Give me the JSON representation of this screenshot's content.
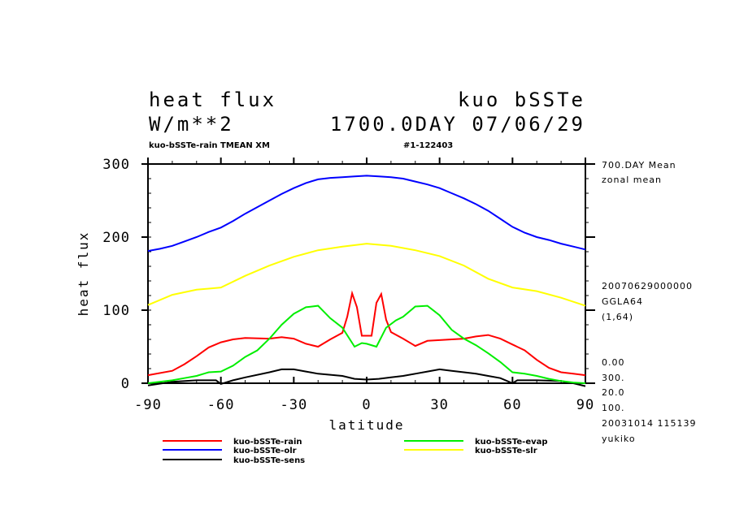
{
  "chart_data": {
    "type": "line",
    "title_left": [
      "heat flux",
      "W/m**2"
    ],
    "title_right": [
      "kuo bSSTe",
      "1700.0DAY 07/06/29"
    ],
    "subtitle_left": "kuo-bSSTe-rain TMEAN XM",
    "subtitle_right": "#1-122403",
    "xlabel": "latitude",
    "ylabel": "heat flux",
    "xlim": [
      -90,
      90
    ],
    "ylim": [
      0,
      300
    ],
    "xticks": [
      -90,
      -60,
      -30,
      0,
      30,
      60,
      90
    ],
    "yticks": [
      0,
      100,
      200,
      300
    ],
    "side_notes": [
      "700.DAY Mean",
      "zonal mean",
      "20070629000000",
      "GGLA64",
      "(1,64)",
      "0.00",
      "300.",
      "20.0",
      "100.",
      "20031014 115139",
      "yukiko"
    ],
    "series": [
      {
        "name": "kuo-bSSTe-rain",
        "color": "#ff0000",
        "x": [
          -90,
          -80,
          -75,
          -70,
          -65,
          -60,
          -55,
          -50,
          -40,
          -35,
          -30,
          -25,
          -20,
          -15,
          -10,
          -8,
          -6,
          -4,
          -2,
          0,
          2,
          4,
          6,
          8,
          10,
          15,
          20,
          25,
          30,
          40,
          45,
          50,
          55,
          60,
          65,
          70,
          75,
          80,
          85,
          90
        ],
        "y": [
          11,
          17,
          26,
          37,
          49,
          56,
          60,
          62,
          61,
          63,
          61,
          54,
          50,
          60,
          69,
          91,
          123,
          104,
          65,
          65,
          65,
          110,
          122,
          87,
          70,
          61,
          51,
          58,
          59,
          61,
          64,
          66,
          61,
          53,
          45,
          32,
          21,
          15,
          13,
          11
        ]
      },
      {
        "name": "kuo-bSSTe-olr",
        "color": "#0000ff",
        "x": [
          -90,
          -85,
          -80,
          -75,
          -70,
          -65,
          -60,
          -55,
          -50,
          -45,
          -40,
          -35,
          -30,
          -25,
          -20,
          -15,
          -10,
          -5,
          0,
          5,
          10,
          15,
          20,
          25,
          30,
          35,
          40,
          45,
          50,
          55,
          60,
          65,
          70,
          75,
          80,
          85,
          90
        ],
        "y": [
          181,
          184,
          188,
          194,
          200,
          207,
          213,
          222,
          232,
          241,
          250,
          259,
          267,
          274,
          279,
          281,
          282,
          283,
          284,
          283,
          282,
          280,
          276,
          272,
          267,
          260,
          253,
          245,
          236,
          225,
          214,
          206,
          200,
          196,
          191,
          187,
          183
        ]
      },
      {
        "name": "kuo-bSSTe-sens",
        "color": "#000000",
        "x": [
          -90,
          -80,
          -70,
          -62,
          -60,
          -55,
          -50,
          -40,
          -35,
          -30,
          -25,
          -20,
          -10,
          -5,
          0,
          5,
          10,
          15,
          20,
          25,
          30,
          35,
          40,
          45,
          50,
          55,
          60,
          62,
          70,
          80,
          85,
          90
        ],
        "y": [
          -3,
          2,
          4,
          4,
          -1,
          4,
          8,
          15,
          19,
          19,
          16,
          13,
          10,
          6,
          5,
          6,
          8,
          10,
          13,
          16,
          19,
          17,
          15,
          13,
          10,
          7,
          0,
          4,
          4,
          3,
          0,
          -4
        ]
      },
      {
        "name": "kuo-bSSTe-evap",
        "color": "#00ee00",
        "x": [
          -90,
          -80,
          -75,
          -70,
          -65,
          -60,
          -55,
          -50,
          -45,
          -40,
          -35,
          -30,
          -25,
          -20,
          -15,
          -10,
          -5,
          -2,
          0,
          4,
          8,
          12,
          15,
          20,
          25,
          30,
          35,
          40,
          45,
          50,
          55,
          60,
          65,
          70,
          75,
          80,
          85,
          90
        ],
        "y": [
          0,
          4,
          7,
          10,
          15,
          16,
          24,
          36,
          45,
          61,
          80,
          95,
          104,
          106,
          89,
          76,
          50,
          55,
          54,
          50,
          76,
          86,
          91,
          105,
          106,
          93,
          73,
          61,
          52,
          41,
          29,
          15,
          13,
          10,
          6,
          3,
          1,
          0
        ]
      },
      {
        "name": "kuo-bSSTe-slr",
        "color": "#ffff00",
        "x": [
          -90,
          -80,
          -70,
          -60,
          -50,
          -40,
          -30,
          -20,
          -10,
          0,
          10,
          20,
          30,
          40,
          50,
          60,
          70,
          80,
          90
        ],
        "y": [
          107,
          121,
          128,
          131,
          147,
          161,
          173,
          182,
          187,
          191,
          188,
          182,
          174,
          161,
          143,
          131,
          126,
          117,
          106
        ]
      }
    ]
  }
}
